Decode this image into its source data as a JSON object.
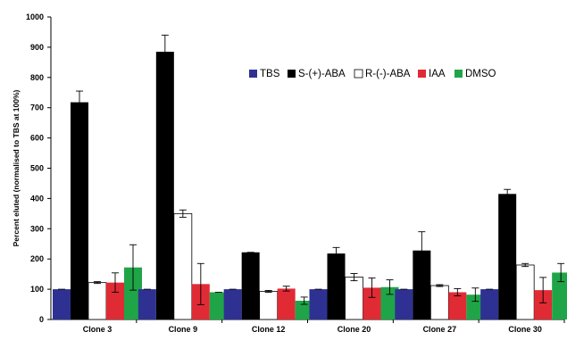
{
  "chart_data": {
    "type": "bar",
    "title": "",
    "xlabel": "",
    "ylabel": "Percent eluted (normalised to TBS at 100%)",
    "ylim": [
      0,
      1000
    ],
    "yticks": [
      0,
      100,
      200,
      300,
      400,
      500,
      600,
      700,
      800,
      900,
      1000
    ],
    "grid": false,
    "legend_position": "top-right",
    "categories": [
      "Clone 3",
      "Clone 9",
      "Clone 12",
      "Clone 20",
      "Clone 27",
      "Clone 30"
    ],
    "series": [
      {
        "name": "TBS",
        "color": "#2e3192",
        "values": [
          100,
          100,
          100,
          100,
          100,
          100
        ],
        "errors": [
          0,
          0,
          0,
          0,
          0,
          0
        ]
      },
      {
        "name": "S-(+)-ABA",
        "color": "#000000",
        "values": [
          718,
          885,
          222,
          218,
          228,
          415
        ],
        "errors": [
          37,
          55,
          0,
          20,
          62,
          15
        ]
      },
      {
        "name": "R-(-)-ABA",
        "color": "#ffffff",
        "values": [
          122,
          350,
          93,
          140,
          112,
          180
        ],
        "errors": [
          3,
          12,
          3,
          12,
          3,
          5
        ]
      },
      {
        "name": "IAA",
        "color": "#e02b35",
        "values": [
          122,
          117,
          102,
          105,
          90,
          97
        ],
        "errors": [
          32,
          68,
          8,
          32,
          12,
          42
        ]
      },
      {
        "name": "DMSO",
        "color": "#1fa548",
        "values": [
          172,
          90,
          62,
          107,
          82,
          155
        ],
        "errors": [
          75,
          0,
          12,
          24,
          22,
          30
        ]
      }
    ]
  }
}
